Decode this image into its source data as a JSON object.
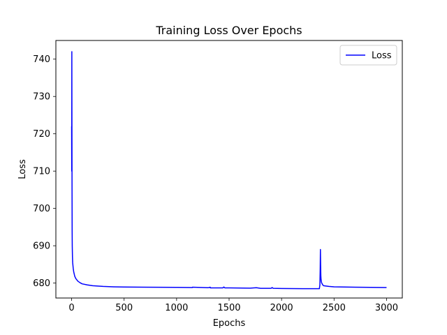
{
  "chart_data": {
    "type": "line",
    "title": "Training Loss Over Epochs",
    "xlabel": "Epochs",
    "ylabel": "Loss",
    "xlim": [
      -150,
      3150
    ],
    "ylim": [
      676,
      745
    ],
    "xticks": [
      0,
      500,
      1000,
      1500,
      2000,
      2500,
      3000
    ],
    "yticks": [
      680,
      690,
      700,
      710,
      720,
      730,
      740
    ],
    "grid": false,
    "legend_position": "top-right",
    "series": [
      {
        "name": "Loss",
        "color": "#0000ff",
        "x": [
          0,
          1,
          2,
          3,
          4,
          5,
          6,
          8,
          10,
          15,
          20,
          30,
          40,
          60,
          80,
          100,
          150,
          200,
          300,
          400,
          500,
          700,
          1000,
          1150,
          1151,
          1300,
          1320,
          1321,
          1440,
          1450,
          1460,
          1500,
          1700,
          1760,
          1800,
          1900,
          1910,
          1920,
          2000,
          2200,
          2360,
          2365,
          2368,
          2370,
          2372,
          2374,
          2376,
          2380,
          2390,
          2400,
          2450,
          2500,
          2700,
          3000
        ],
        "y": [
          722,
          710,
          742,
          720,
          705,
          694,
          690,
          687,
          685.5,
          684,
          683,
          681.8,
          681.2,
          680.5,
          680.1,
          679.8,
          679.5,
          679.3,
          679.1,
          679.0,
          678.95,
          678.9,
          678.85,
          678.8,
          678.9,
          678.75,
          678.9,
          678.7,
          678.7,
          678.95,
          678.7,
          678.7,
          678.65,
          678.75,
          678.6,
          678.6,
          678.8,
          678.6,
          678.55,
          678.5,
          678.5,
          679.5,
          684,
          689,
          685,
          682,
          681,
          680.2,
          679.6,
          679.3,
          679.1,
          679.0,
          678.9,
          678.8
        ]
      }
    ]
  }
}
